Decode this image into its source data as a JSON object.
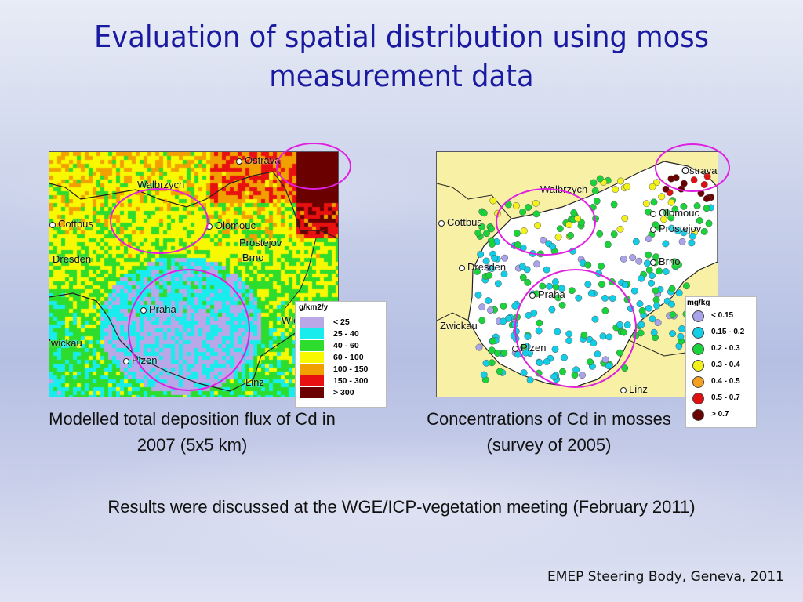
{
  "slide": {
    "title": "Evaluation of spatial distribution using moss measurement data",
    "caption_left": "Modelled total deposition flux of Cd in 2007 (5x5 km)",
    "caption_right": "Concentrations of Cd in mosses (survey of 2005)",
    "note": "Results were discussed at the WGE/ICP-vegetation meeting (February 2011)",
    "footer": "EMEP Steering Body, Geneva, 2011"
  },
  "map_left": {
    "cities": [
      "Ostrava",
      "Walbrzych",
      "Cottbus",
      "Olomouc",
      "Prostejov",
      "Brno",
      "Dresden",
      "Praha",
      "Wien",
      "Zwickau",
      "Plzen",
      "Linz"
    ],
    "legend_unit": "g/km2/y",
    "legend": [
      {
        "label": "< 25",
        "color": "#b9a7e8"
      },
      {
        "label": "25 - 40",
        "color": "#19ecec"
      },
      {
        "label": "40 - 60",
        "color": "#2ddc2d"
      },
      {
        "label": "60 - 100",
        "color": "#f8f800"
      },
      {
        "label": "100 - 150",
        "color": "#f2a000"
      },
      {
        "label": "150 - 300",
        "color": "#e81010"
      },
      {
        "label": "> 300",
        "color": "#6b0000"
      }
    ]
  },
  "map_right": {
    "cities": [
      "Ostrava",
      "Walbrzych",
      "Cottbus",
      "Olomouc",
      "Prostejov",
      "Brno",
      "Dresden",
      "Praha",
      "Zwickau",
      "Plzen",
      "Linz"
    ],
    "legend_unit": "mg/kg",
    "legend": [
      {
        "label": "< 0.15",
        "color": "#a9a3ec"
      },
      {
        "label": "0.15 - 0.2",
        "color": "#12cde6"
      },
      {
        "label": "0.2 - 0.3",
        "color": "#18d43a"
      },
      {
        "label": "0.3 - 0.4",
        "color": "#f2f21a"
      },
      {
        "label": "0.4 - 0.5",
        "color": "#f5a020"
      },
      {
        "label": "0.5 - 0.7",
        "color": "#e01010"
      },
      {
        "label": "> 0.7",
        "color": "#6a0000"
      }
    ]
  }
}
